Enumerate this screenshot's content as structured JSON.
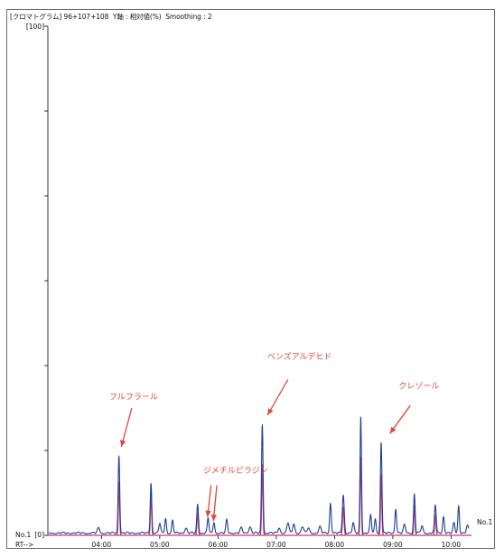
{
  "header": {
    "prefix": "[クロマトグラム]",
    "ions": "96+107+108",
    "yaxis": "Y軸 : 相対値(%)",
    "smoothing": "Smoothing : 2"
  },
  "axis": {
    "ytop": "[100]",
    "ybottom": "[0]",
    "no_left": "No.1",
    "no_right": "No.1",
    "rt": "RT-->"
  },
  "colors": {
    "primary": "#1f3f8f",
    "overlay": "#d8327a",
    "annotation": "#e0463a"
  },
  "chart_data": {
    "type": "line",
    "title": "",
    "xlabel": "RT-->",
    "ylabel": "Y軸 : 相対値(%)",
    "xunit": "min",
    "xlim": [
      3.08,
      10.35
    ],
    "ylim": [
      0,
      100
    ],
    "xticks": [
      {
        "value": 4.0,
        "label": "04:00"
      },
      {
        "value": 5.0,
        "label": "05:00"
      },
      {
        "value": 6.0,
        "label": "06:00"
      },
      {
        "value": 7.0,
        "label": "07:00"
      },
      {
        "value": 8.0,
        "label": "08:00"
      },
      {
        "value": 9.0,
        "label": "09:00"
      },
      {
        "value": 10.0,
        "label": "10:00"
      }
    ],
    "ytick_count": 6,
    "baseline": 0.3,
    "series": [
      {
        "style": "primary",
        "peaks": [
          {
            "rt": 3.95,
            "h": 1.0,
            "w": 0.02
          },
          {
            "rt": 4.3,
            "h": 15.4,
            "w": 0.013
          },
          {
            "rt": 4.85,
            "h": 9.9,
            "w": 0.013
          },
          {
            "rt": 5.0,
            "h": 2.0,
            "w": 0.015
          },
          {
            "rt": 5.1,
            "h": 2.9,
            "w": 0.014
          },
          {
            "rt": 5.22,
            "h": 2.5,
            "w": 0.014
          },
          {
            "rt": 5.45,
            "h": 1.0,
            "w": 0.02
          },
          {
            "rt": 5.65,
            "h": 5.7,
            "w": 0.014
          },
          {
            "rt": 5.83,
            "h": 3.0,
            "w": 0.014
          },
          {
            "rt": 5.93,
            "h": 2.2,
            "w": 0.014
          },
          {
            "rt": 6.15,
            "h": 2.6,
            "w": 0.015
          },
          {
            "rt": 6.4,
            "h": 1.0,
            "w": 0.02
          },
          {
            "rt": 6.55,
            "h": 1.3,
            "w": 0.02
          },
          {
            "rt": 6.76,
            "h": 21.5,
            "w": 0.013
          },
          {
            "rt": 7.05,
            "h": 1.0,
            "w": 0.02
          },
          {
            "rt": 7.2,
            "h": 2.1,
            "w": 0.018
          },
          {
            "rt": 7.3,
            "h": 1.8,
            "w": 0.018
          },
          {
            "rt": 7.45,
            "h": 1.3,
            "w": 0.02
          },
          {
            "rt": 7.55,
            "h": 1.0,
            "w": 0.02
          },
          {
            "rt": 7.75,
            "h": 1.2,
            "w": 0.02
          },
          {
            "rt": 7.93,
            "h": 6.0,
            "w": 0.014
          },
          {
            "rt": 8.15,
            "h": 7.5,
            "w": 0.016
          },
          {
            "rt": 8.32,
            "h": 2.0,
            "w": 0.016
          },
          {
            "rt": 8.45,
            "h": 23.0,
            "w": 0.012
          },
          {
            "rt": 8.62,
            "h": 3.6,
            "w": 0.014
          },
          {
            "rt": 8.7,
            "h": 2.8,
            "w": 0.014
          },
          {
            "rt": 8.8,
            "h": 18.0,
            "w": 0.013
          },
          {
            "rt": 9.05,
            "h": 4.8,
            "w": 0.014
          },
          {
            "rt": 9.2,
            "h": 1.6,
            "w": 0.018
          },
          {
            "rt": 9.37,
            "h": 7.7,
            "w": 0.013
          },
          {
            "rt": 9.5,
            "h": 1.4,
            "w": 0.018
          },
          {
            "rt": 9.73,
            "h": 5.6,
            "w": 0.014
          },
          {
            "rt": 9.87,
            "h": 3.4,
            "w": 0.014
          },
          {
            "rt": 10.05,
            "h": 2.0,
            "w": 0.016
          },
          {
            "rt": 10.13,
            "h": 5.5,
            "w": 0.013
          },
          {
            "rt": 10.28,
            "h": 1.4,
            "w": 0.018
          }
        ]
      },
      {
        "style": "overlay",
        "peaks": [
          {
            "rt": 4.3,
            "h": 10.5,
            "w": 0.011
          },
          {
            "rt": 4.85,
            "h": 8.6,
            "w": 0.011
          },
          {
            "rt": 5.65,
            "h": 4.4,
            "w": 0.012
          },
          {
            "rt": 6.76,
            "h": 14.0,
            "w": 0.011
          },
          {
            "rt": 8.15,
            "h": 5.5,
            "w": 0.013
          },
          {
            "rt": 8.45,
            "h": 15.5,
            "w": 0.011
          },
          {
            "rt": 8.8,
            "h": 12.0,
            "w": 0.011
          },
          {
            "rt": 9.37,
            "h": 5.8,
            "w": 0.011
          },
          {
            "rt": 9.73,
            "h": 4.0,
            "w": 0.012
          }
        ]
      }
    ],
    "annotations": [
      {
        "text": "フルフラール",
        "x": 4.55,
        "y": 26.7,
        "arrows": [
          {
            "from": [
              4.52,
              25.0
            ],
            "to": [
              4.34,
              17.4
            ]
          }
        ]
      },
      {
        "text": "ジメチルピラジン",
        "x": 6.3,
        "y": 12.2,
        "arrows": [
          {
            "from": [
              5.88,
              9.8
            ],
            "to": [
              5.82,
              3.6
            ]
          },
          {
            "from": [
              5.98,
              9.8
            ],
            "to": [
              5.92,
              2.8
            ]
          }
        ]
      },
      {
        "text": "ベンズアルデヒド",
        "x": 7.4,
        "y": 34.6,
        "arrows": [
          {
            "from": [
              7.2,
              30.6
            ],
            "to": [
              6.85,
              23.6
            ]
          }
        ]
      },
      {
        "text": "クレゾール",
        "x": 9.45,
        "y": 28.8,
        "arrows": [
          {
            "from": [
              9.3,
              25.5
            ],
            "to": [
              8.95,
              20.0
            ]
          }
        ]
      }
    ]
  }
}
